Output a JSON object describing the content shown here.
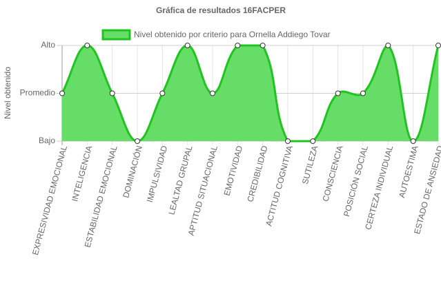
{
  "chart_data": {
    "type": "area",
    "title": "Gráfica de resultados 16FACPER",
    "y_label": "Nivel obtenido",
    "categories": [
      "EXPRESIVIDAD EMOCIONAL",
      "INTELIGENCIA",
      "ESTABILIDAD EMOCIONAL",
      "DOMINACIÓN",
      "IMPULSIVIDAD",
      "LEALTAD GRUPAL",
      "APTITUD SITUACIONAL",
      "EMOTIVIDAD",
      "CREDIBILIDAD",
      "ACTITUD COGNITIVA",
      "SUTILEZA",
      "CONSCIENCIA",
      "POSICIÓN SOCIAL",
      "CERTEZA INDIVIDUAL",
      "AUTOESTIMA",
      "ESTADO DE ANSIEDAD"
    ],
    "series": [
      {
        "name": "Nivel obtenido por criterio para Ornella Addiego Tovar",
        "color": "#1fc41f",
        "fill": "#66dd66",
        "values": [
          1,
          2,
          1,
          0,
          1,
          2,
          1,
          2,
          2,
          0,
          0,
          1,
          1,
          2,
          0,
          2
        ]
      }
    ],
    "ylim": [
      0,
      2
    ],
    "yticks": [
      {
        "value": 0,
        "label": "Bajo"
      },
      {
        "value": 1,
        "label": "Promedio"
      },
      {
        "value": 2,
        "label": "Alto"
      }
    ],
    "grid": true,
    "legend": "top"
  }
}
